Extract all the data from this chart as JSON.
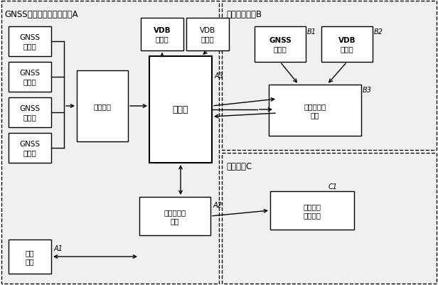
{
  "title_A": "GNSS地基增强系统地面站A",
  "title_B": "位置域监测站B",
  "title_C": "管控中心C",
  "labels": {
    "gnss": "GNSS\n接收机",
    "receive": "接收设备",
    "processor": "处理机",
    "vdb_tx": "VDB\n发射机",
    "vdb_rx_a": "VDB\n接收机",
    "weather": "气象\n设备",
    "tropo": "对流层监测\n设备",
    "gnss_b": "GNSS\n接收机",
    "vdb_b": "VDB\n接收机",
    "position": "位置域监测\n单元",
    "aviation": "航空气象\n服务设备"
  },
  "ann": {
    "A1": "A1",
    "A2": "A2",
    "A3": "A3",
    "B1": "B1",
    "B2": "B2",
    "B3": "B3",
    "C1": "C1"
  }
}
